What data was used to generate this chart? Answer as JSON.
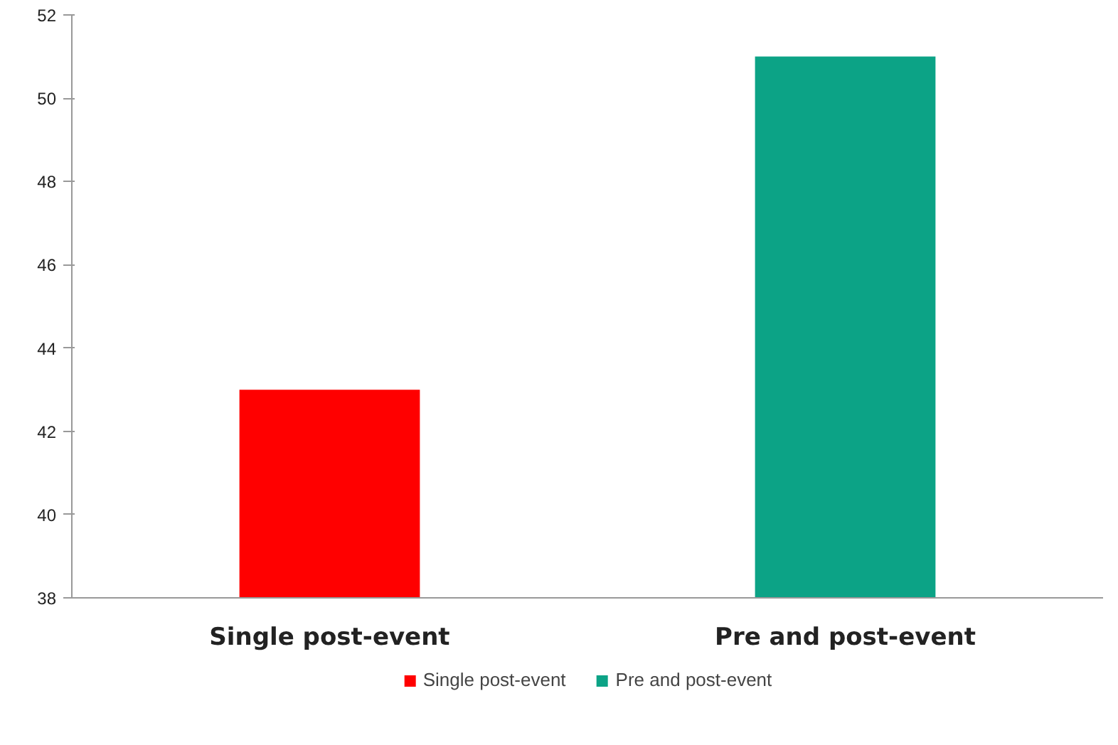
{
  "chart_data": {
    "type": "bar",
    "categories": [
      "Single post-event",
      "Pre and post-event"
    ],
    "series": [
      {
        "name": "Single post-event",
        "color": "#ff0000",
        "values": [
          43,
          null
        ]
      },
      {
        "name": "Pre and post-event",
        "color": "#0ca386",
        "values": [
          null,
          51
        ]
      }
    ],
    "ylim": [
      38,
      52
    ],
    "yticks": [
      38,
      40,
      42,
      44,
      46,
      48,
      50,
      52
    ],
    "grid": false,
    "legend": "bottom"
  }
}
